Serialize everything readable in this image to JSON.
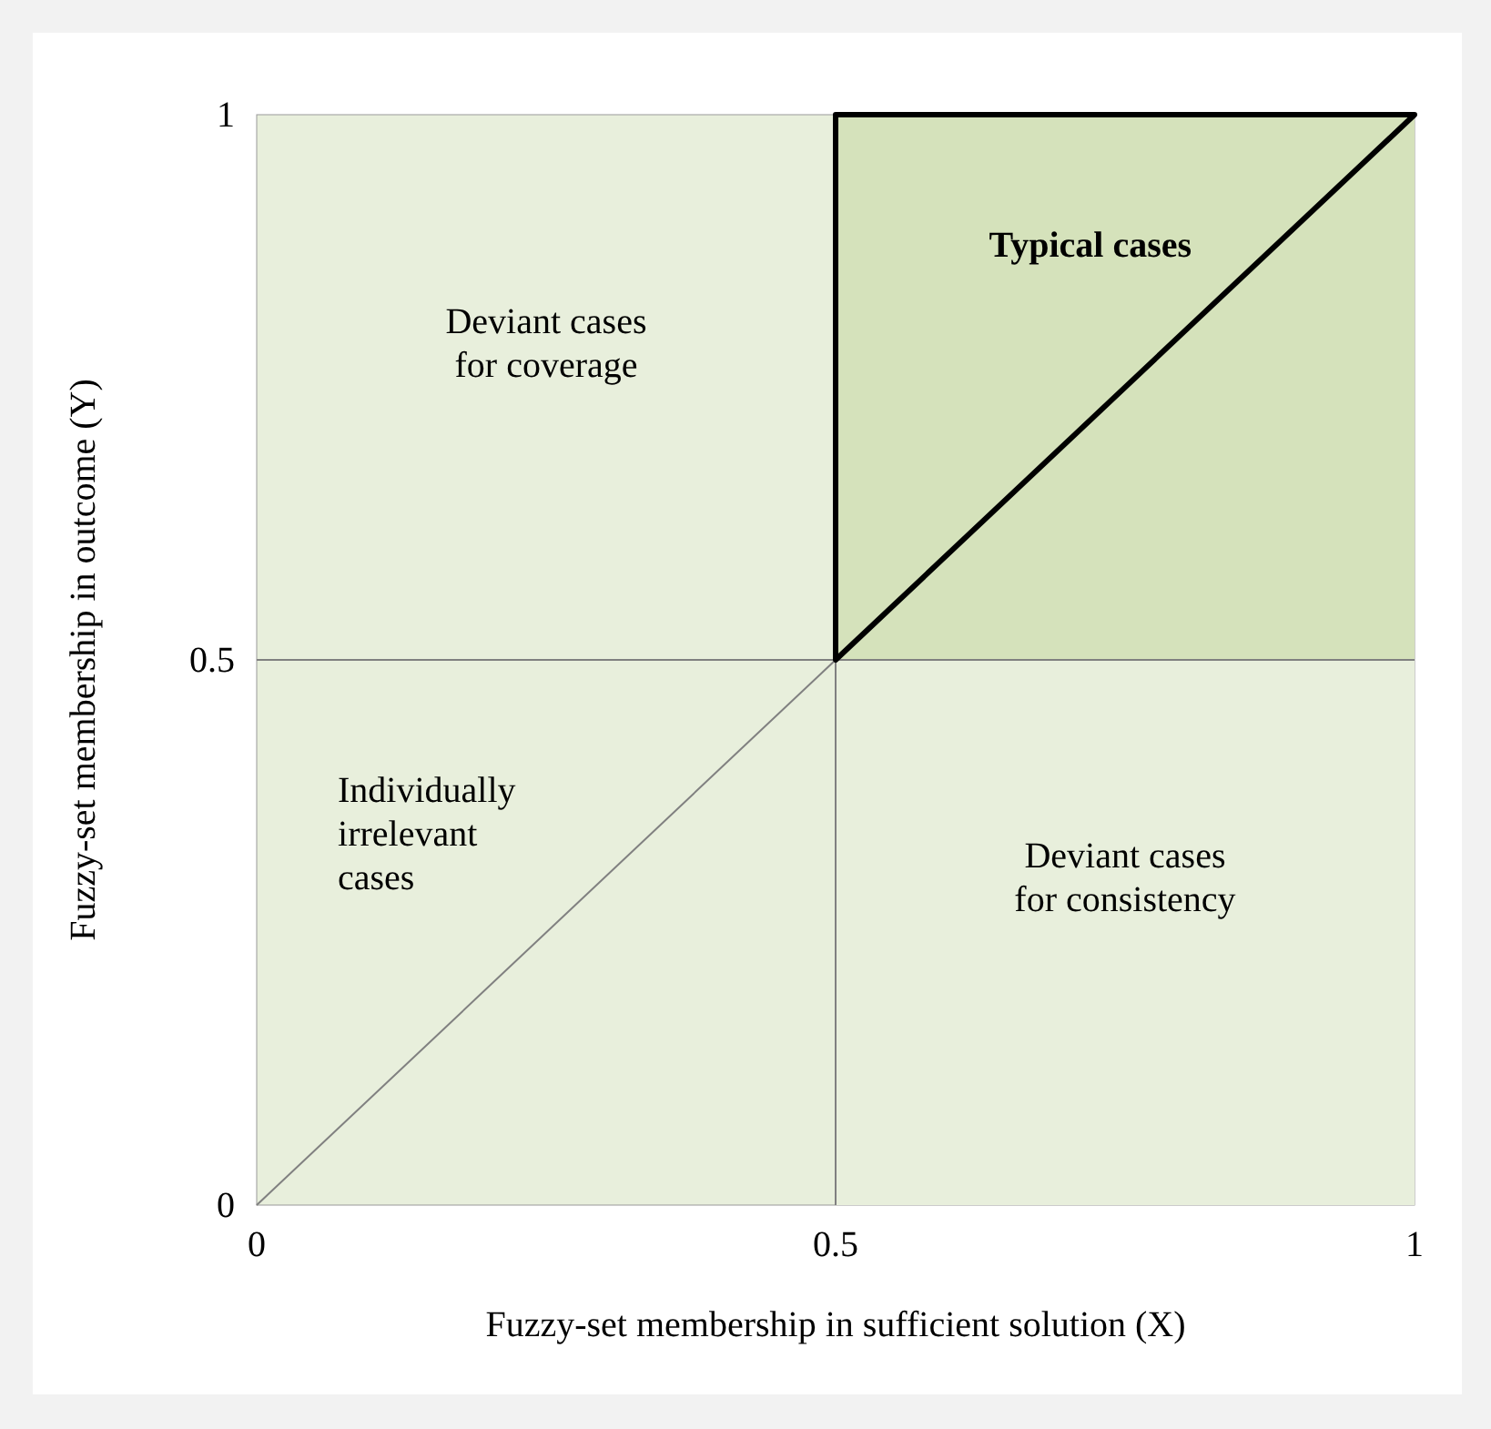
{
  "chart_data": {
    "type": "line",
    "xlabel": "Fuzzy-set membership in sufficient solution (X)",
    "ylabel": "Fuzzy-set membership in outcome (Y)",
    "xlim": [
      0,
      1
    ],
    "ylim": [
      0,
      1
    ],
    "xticks": [
      0,
      0.5,
      1
    ],
    "yticks": [
      0,
      0.5,
      1
    ],
    "grid": false,
    "marker": "none",
    "stacked": true,
    "series": [
      {
        "type": "area",
        "color": "#e8efdc",
        "x": [
          0.5,
          1
        ],
        "values": [
          0.5,
          0.5
        ]
      },
      {
        "type": "area",
        "color": "#d5e2bb",
        "x": [
          0.5,
          1
        ],
        "values": [
          0.5,
          0.5
        ]
      },
      {
        "type": "line",
        "color": "#808080",
        "x": [
          0,
          0.5
        ],
        "values": [
          0,
          0.5
        ]
      },
      {
        "type": "line",
        "color": "#808080",
        "x": [
          0,
          1
        ],
        "values": [
          0.5,
          0.5
        ]
      }
    ],
    "ref_lines": [
      {
        "axis": "x",
        "value": 0.5,
        "color": "#808080"
      }
    ],
    "annotations": [
      "Typical cases",
      "Deviant cases\nfor coverage",
      "Individually\nirrelevant\ncases",
      "Deviant cases\nfor consistency"
    ]
  }
}
